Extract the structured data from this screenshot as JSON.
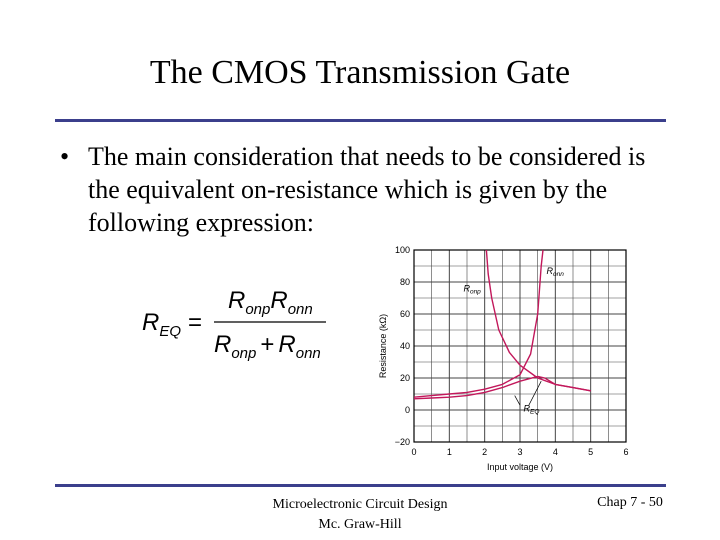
{
  "slide": {
    "title": "The CMOS Transmission Gate",
    "bullet": "The main consideration that needs to be considered is the equivalent on-resistance which is given by the following expression:",
    "bullet_symbol": "•"
  },
  "formula": {
    "lhs": "R",
    "lhs_sub": "EQ",
    "equals": "=",
    "num_1": "R",
    "num_1_sub": "onp",
    "num_2": "R",
    "num_2_sub": "onn",
    "den_1": "R",
    "den_1_sub": "onp",
    "plus": "+",
    "den_2": "R",
    "den_2_sub": "onn"
  },
  "chart_data": {
    "type": "line",
    "xlabel": "Input voltage (V)",
    "ylabel": "Resistance (kΩ)",
    "xlim": [
      0,
      6
    ],
    "ylim": [
      -20,
      100
    ],
    "x_ticks": [
      "0",
      "1",
      "2",
      "3",
      "4",
      "5",
      "6"
    ],
    "y_ticks": [
      "100",
      "80",
      "60",
      "40",
      "20",
      "0",
      "−20"
    ],
    "grid": true,
    "line_color": "#c2185b",
    "series": [
      {
        "name": "R_onp",
        "x": [
          2.05,
          2.1,
          2.2,
          2.4,
          2.7,
          3.0,
          3.5,
          4.0,
          4.5,
          5.0
        ],
        "y": [
          100,
          85,
          70,
          50,
          36,
          28,
          20,
          16,
          14,
          12
        ]
      },
      {
        "name": "R_onn",
        "x": [
          0,
          0.5,
          1.0,
          1.5,
          2.0,
          2.5,
          3.0,
          3.3,
          3.5,
          3.6,
          3.65
        ],
        "y": [
          8,
          9,
          10,
          11,
          13,
          16,
          22,
          35,
          60,
          90,
          100
        ]
      },
      {
        "name": "R_EQ",
        "x": [
          0,
          0.5,
          1.0,
          1.5,
          2.0,
          2.5,
          3.0,
          3.5,
          3.7,
          4.0,
          4.5,
          5.0
        ],
        "y": [
          7,
          7.5,
          8,
          9,
          11,
          14,
          18,
          21,
          20,
          16,
          14,
          12
        ]
      }
    ],
    "annotations": [
      {
        "name": "R_onn",
        "text_main": "R",
        "text_sub": "onn",
        "x": 3.75,
        "y": 85
      },
      {
        "name": "R_onp",
        "text_main": "R",
        "text_sub": "onp",
        "x": 1.4,
        "y": 74
      },
      {
        "name": "R_EQ",
        "text_main": "R",
        "text_sub": "EQ",
        "x": 3.1,
        "y": -1
      }
    ]
  },
  "footer": {
    "course_line1": "Microelectronic Circuit Design",
    "course_line2": "Mc. Graw-Hill",
    "page": "Chap 7 - 50"
  }
}
